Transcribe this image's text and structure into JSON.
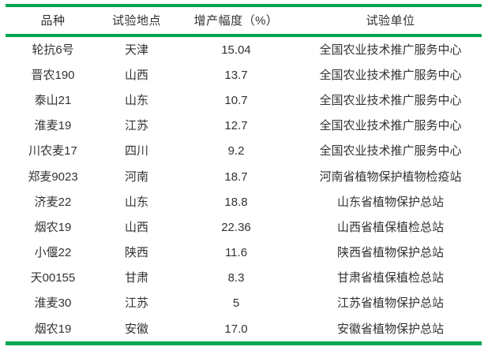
{
  "accent_color": "#00a651",
  "table": {
    "columns": [
      {
        "key": "variety",
        "label": "品种"
      },
      {
        "key": "location",
        "label": "试验地点"
      },
      {
        "key": "increase_pct",
        "label": "增产幅度（%）"
      },
      {
        "key": "unit",
        "label": "试验单位"
      }
    ],
    "rows": [
      {
        "variety": "轮抗6号",
        "location": "天津",
        "increase_pct": "15.04",
        "unit": "全国农业技术推广服务中心"
      },
      {
        "variety": "晋农190",
        "location": "山西",
        "increase_pct": "13.7",
        "unit": "全国农业技术推广服务中心"
      },
      {
        "variety": "泰山21",
        "location": "山东",
        "increase_pct": "10.7",
        "unit": "全国农业技术推广服务中心"
      },
      {
        "variety": "淮麦19",
        "location": "江苏",
        "increase_pct": "12.7",
        "unit": "全国农业技术推广服务中心"
      },
      {
        "variety": "川农麦17",
        "location": "四川",
        "increase_pct": "9.2",
        "unit": "全国农业技术推广服务中心"
      },
      {
        "variety": "郑麦9023",
        "location": "河南",
        "increase_pct": "18.7",
        "unit": "河南省植物保护植物检疫站"
      },
      {
        "variety": "济麦22",
        "location": "山东",
        "increase_pct": "18.8",
        "unit": "山东省植物保护总站"
      },
      {
        "variety": "烟农19",
        "location": "山西",
        "increase_pct": "22.36",
        "unit": "山西省植保植检总站"
      },
      {
        "variety": "小偃22",
        "location": "陕西",
        "increase_pct": "11.6",
        "unit": "陕西省植物保护总站"
      },
      {
        "variety": "天00155",
        "location": "甘肃",
        "increase_pct": "8.3",
        "unit": "甘肃省植保植检总站"
      },
      {
        "variety": "淮麦30",
        "location": "江苏",
        "increase_pct": "5",
        "unit": "江苏省植物保护总站"
      },
      {
        "variety": "烟农19",
        "location": "安徽",
        "increase_pct": "17.0",
        "unit": "安徽省植物保护总站"
      }
    ]
  }
}
